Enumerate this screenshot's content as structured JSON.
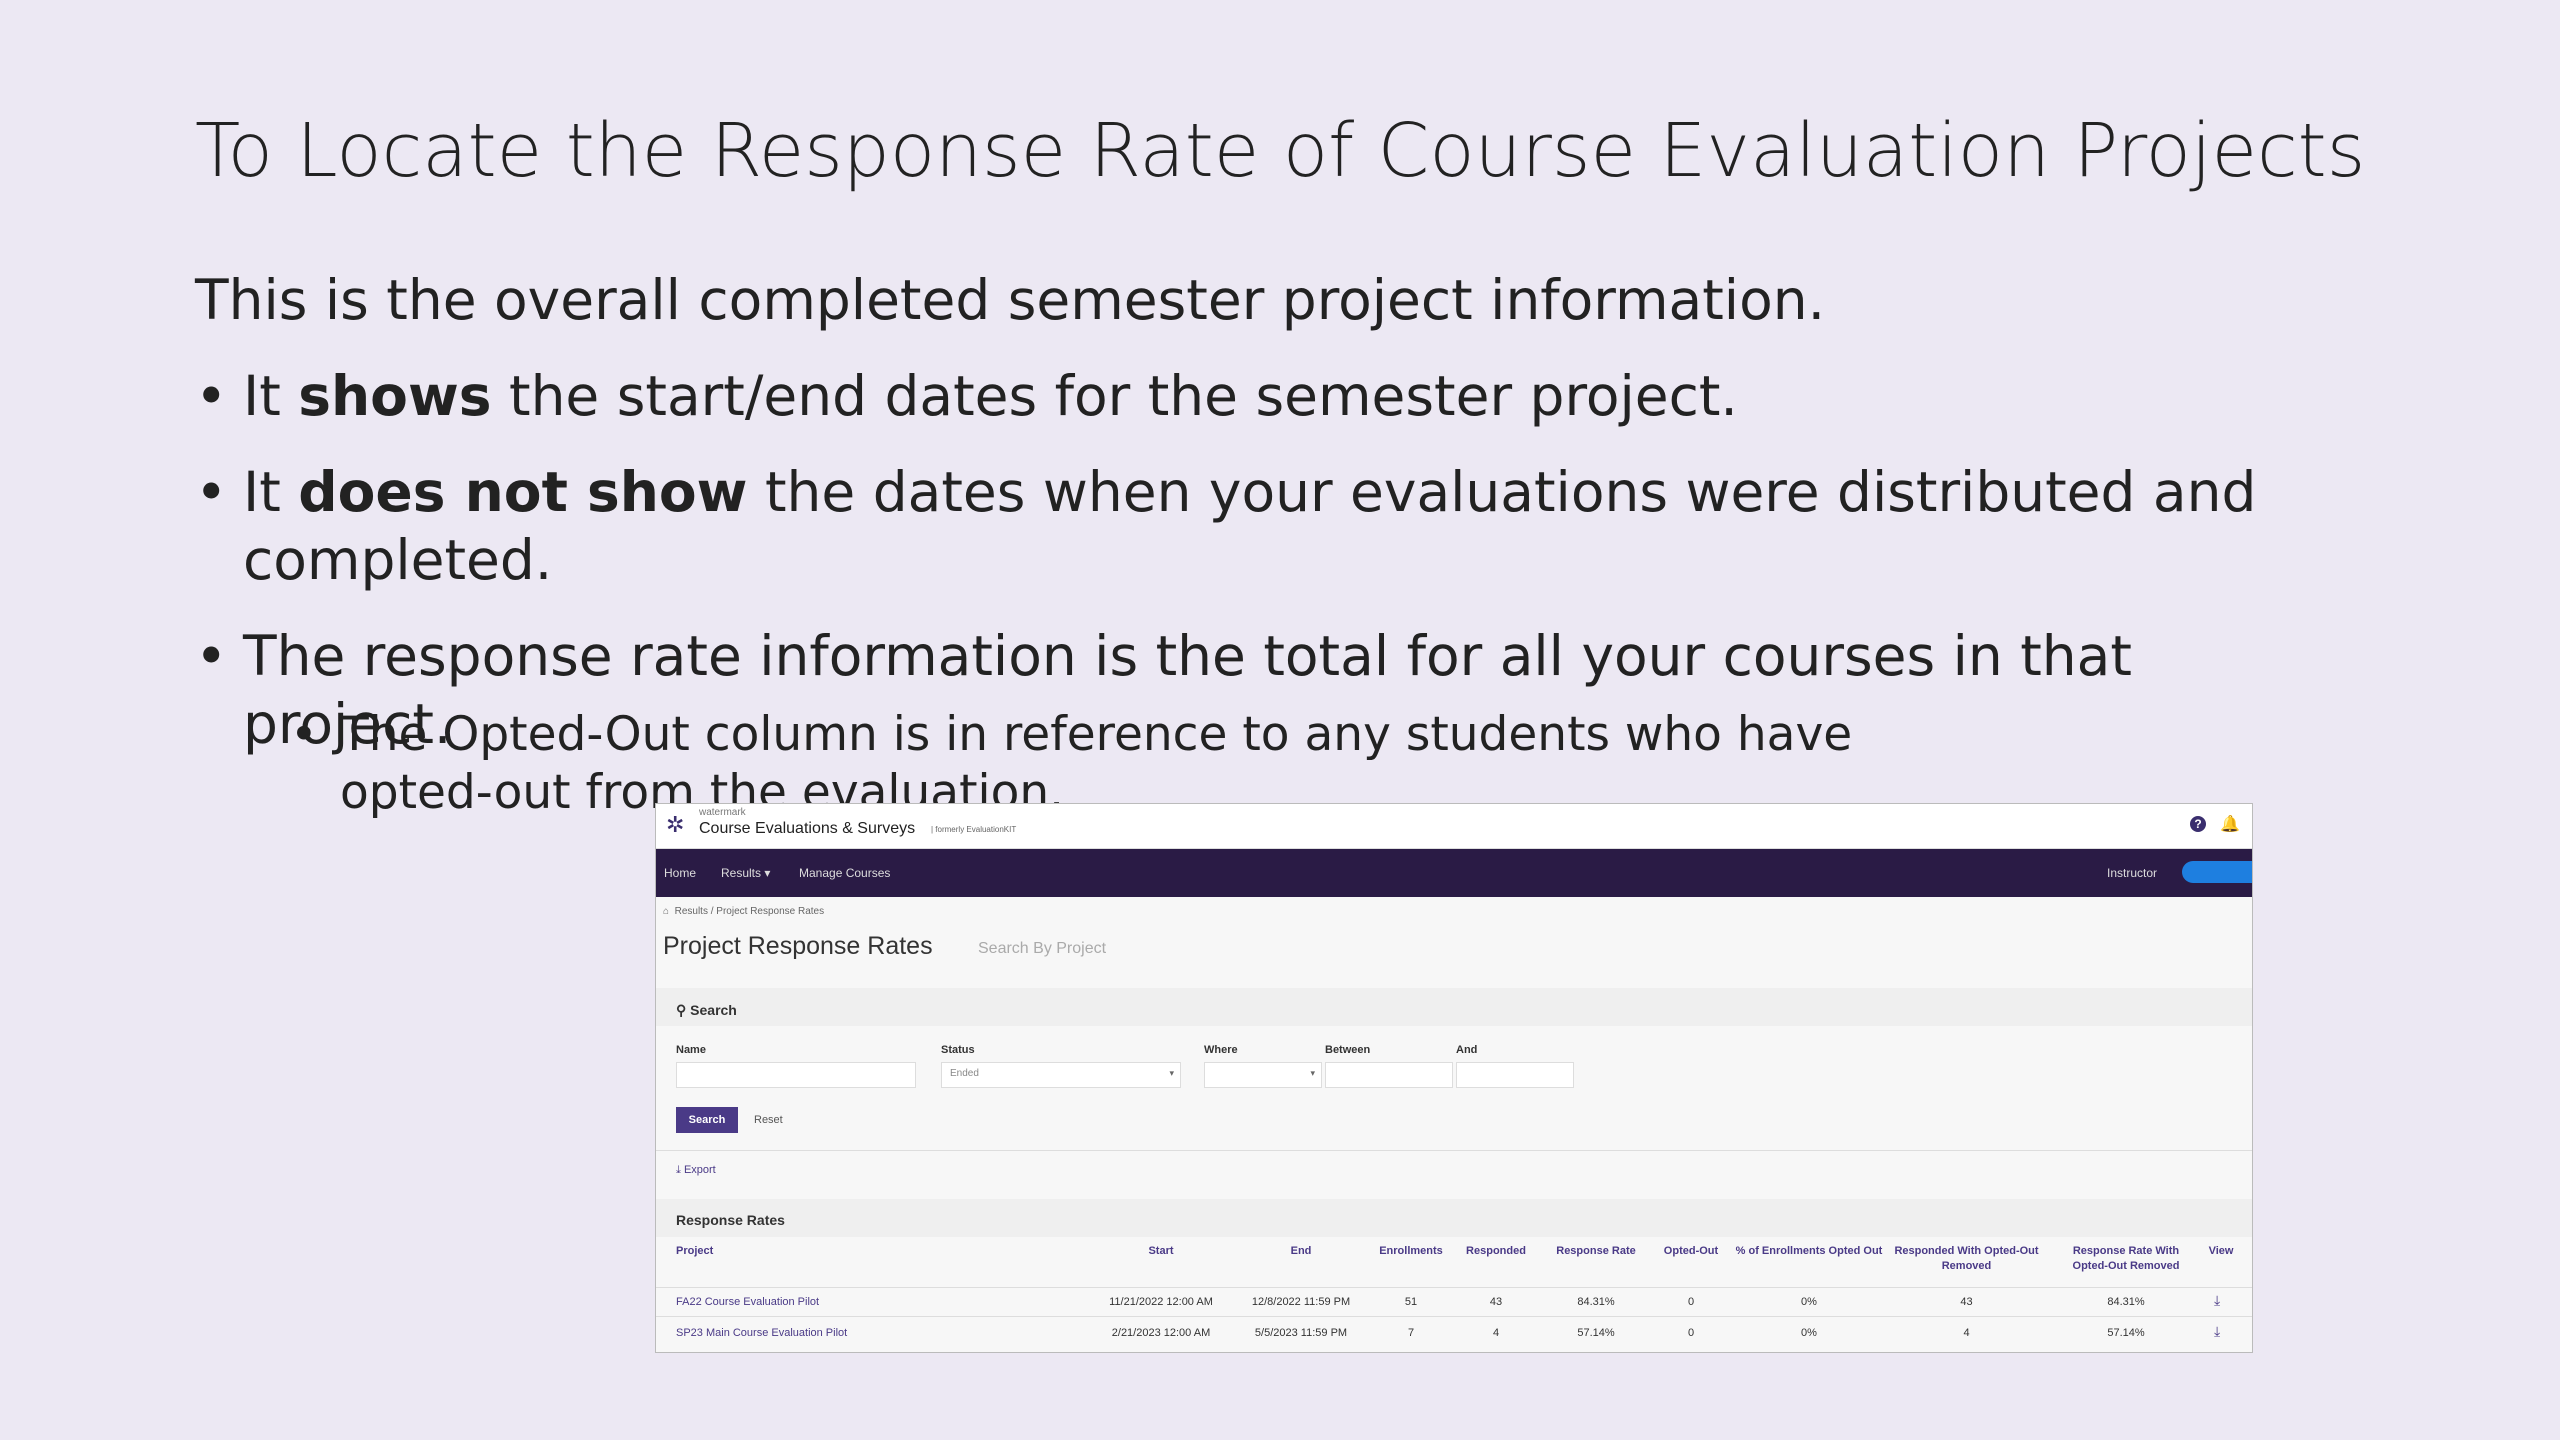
{
  "slide": {
    "title": "To Locate the Response Rate of Course Evaluation Projects",
    "intro": "This is the overall completed semester project information.",
    "bullet1_pre": "It ",
    "bullet1_bold": "shows",
    "bullet1_post": " the start/end dates for the semester project.",
    "bullet2_pre": "It ",
    "bullet2_bold": "does not show",
    "bullet2_post": " the dates when your evaluations were distributed and completed.",
    "bullet3": "The response rate information is the total for all your courses in that project.",
    "sub_bullet": "The Opted-Out column is in reference to any students who have opted-out from the evaluation."
  },
  "screenshot": {
    "brand_small": "watermark",
    "brand": "Course Evaluations & Surveys",
    "brand_sub": "| formerly EvaluationKIT",
    "nav": {
      "home": "Home",
      "results": "Results ▾",
      "manage": "Manage Courses",
      "user": "Instructor"
    },
    "breadcrumb": "Results  /  Project Response Rates",
    "page_title": "Project Response Rates",
    "page_subtitle": "Search By Project",
    "search": {
      "heading": "Search",
      "name_label": "Name",
      "status_label": "Status",
      "status_value": "Ended",
      "where_label": "Where",
      "between_label": "Between",
      "and_label": "And",
      "search_btn": "Search",
      "reset_btn": "Reset"
    },
    "export_label": "Export",
    "table": {
      "heading": "Response Rates",
      "columns": [
        "Project",
        "Start",
        "End",
        "Enrollments",
        "Responded",
        "Response Rate",
        "Opted-Out",
        "% of Enrollments Opted Out",
        "Responded With Opted-Out Removed",
        "Response Rate With Opted-Out Removed",
        "View"
      ],
      "rows": [
        [
          "FA22 Course Evaluation Pilot",
          "11/21/2022 12:00 AM",
          "12/8/2022 11:59 PM",
          "51",
          "43",
          "84.31%",
          "0",
          "0%",
          "43",
          "84.31%"
        ],
        [
          "SP23 Main Course Evaluation Pilot",
          "2/21/2023 12:00 AM",
          "5/5/2023 11:59 PM",
          "7",
          "4",
          "57.14%",
          "0",
          "0%",
          "4",
          "57.14%"
        ]
      ]
    }
  }
}
